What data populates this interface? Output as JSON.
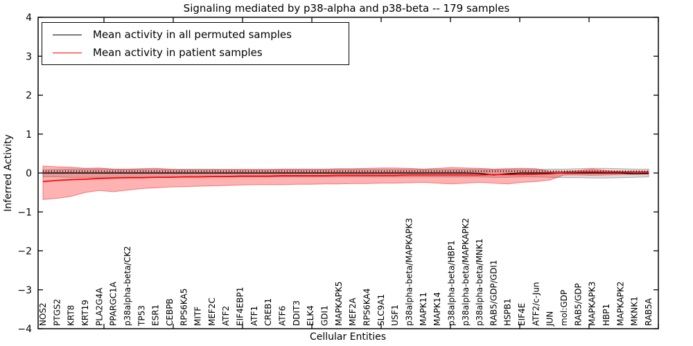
{
  "chart_data": {
    "type": "line",
    "title": "Signaling mediated by p38-alpha and p38-beta -- 179 samples",
    "xlabel": "Cellular Entities",
    "ylabel": "Inferred Activity",
    "ylim": [
      -4,
      4
    ],
    "yticks": [
      4,
      3,
      2,
      1,
      0,
      -1,
      -2,
      -3,
      -4
    ],
    "grid": false,
    "legend_position": "upper left",
    "zero_line": {
      "style": "dotted",
      "color": "#000000",
      "y": 0
    },
    "categories": [
      "NOS2",
      "PTGS2",
      "KRT8",
      "KRT19",
      "PLA2G4A",
      "PPARGC1A",
      "p38alpha-beta/CK2",
      "TP53",
      "ESR1",
      "CEBPB",
      "RPS6KA5",
      "MITF",
      "MEF2C",
      "ATF2",
      "EIF4EBP1",
      "ATF1",
      "CREB1",
      "ATF6",
      "DDIT3",
      "ELK4",
      "GDI1",
      "MAPKAPK5",
      "MEF2A",
      "RPS6KA4",
      "SLC9A1",
      "USF1",
      "p38alpha-beta/MAPKAPK3",
      "MAPK11",
      "MAPK14",
      "p38alpha-beta/HBP1",
      "p38alpha-beta/MAPKAPK2",
      "p38alpha-beta/MNK1",
      "RAB5/GDP/GDI1",
      "HSPB1",
      "EIF4E",
      "ATF2/c-Jun",
      "JUN",
      "mol:GDP",
      "RAB5/GDP",
      "MAPKAPK3",
      "HBP1",
      "MAPKAPK2",
      "MKNK1",
      "RAB5A"
    ],
    "series": [
      {
        "name": "Mean activity in all permuted samples",
        "color": "#000000",
        "values": [
          0,
          0,
          0,
          0,
          0,
          0,
          0,
          0,
          0,
          0,
          0,
          0,
          0,
          0,
          0,
          0,
          0,
          0,
          0,
          0,
          0,
          0,
          0,
          0,
          0,
          0,
          0,
          0,
          0,
          0,
          0,
          -0.01,
          -0.05,
          -0.02,
          0,
          0,
          0,
          0,
          0,
          0,
          0,
          0,
          -0.02,
          -0.01
        ],
        "band": {
          "upper": [
            0.08,
            0.09,
            0.1,
            0.1,
            0.1,
            0.1,
            0.09,
            0.09,
            0.09,
            0.09,
            0.1,
            0.1,
            0.1,
            0.09,
            0.09,
            0.09,
            0.09,
            0.09,
            0.09,
            0.09,
            0.09,
            0.09,
            0.09,
            0.09,
            0.09,
            0.09,
            0.09,
            0.09,
            0.09,
            0.09,
            0.09,
            0.09,
            0.09,
            0.09,
            0.09,
            0.09,
            0.1,
            0.1,
            0.11,
            0.12,
            0.12,
            0.11,
            0.1,
            0.1
          ],
          "lower": [
            -0.1,
            -0.1,
            -0.11,
            -0.11,
            -0.11,
            -0.11,
            -0.1,
            -0.1,
            -0.1,
            -0.1,
            -0.1,
            -0.1,
            -0.1,
            -0.1,
            -0.1,
            -0.1,
            -0.1,
            -0.1,
            -0.1,
            -0.1,
            -0.1,
            -0.1,
            -0.1,
            -0.1,
            -0.1,
            -0.1,
            -0.1,
            -0.1,
            -0.1,
            -0.1,
            -0.1,
            -0.1,
            -0.11,
            -0.11,
            -0.1,
            -0.1,
            -0.11,
            -0.12,
            -0.12,
            -0.13,
            -0.13,
            -0.12,
            -0.11,
            -0.1
          ],
          "fill": "rgba(0,0,0,0.14)",
          "edge": "rgba(110,110,110,0.5)"
        }
      },
      {
        "name": "Mean activity in patient samples",
        "color": "#ff0000",
        "values": [
          -0.22,
          -0.19,
          -0.17,
          -0.16,
          -0.14,
          -0.13,
          -0.12,
          -0.12,
          -0.11,
          -0.11,
          -0.1,
          -0.1,
          -0.09,
          -0.09,
          -0.08,
          -0.08,
          -0.08,
          -0.07,
          -0.07,
          -0.07,
          -0.07,
          -0.06,
          -0.06,
          -0.06,
          -0.06,
          -0.06,
          -0.05,
          -0.05,
          -0.05,
          -0.05,
          -0.05,
          -0.05,
          -0.04,
          -0.04,
          -0.04,
          -0.03,
          -0.02,
          0.01,
          0.02,
          0.03,
          0.02,
          0.02,
          0.02,
          0.02
        ],
        "band": {
          "upper": [
            0.18,
            0.16,
            0.15,
            0.12,
            0.13,
            0.1,
            0.1,
            0.11,
            0.12,
            0.1,
            0.08,
            0.08,
            0.08,
            0.09,
            0.09,
            0.09,
            0.09,
            0.1,
            0.1,
            0.1,
            0.1,
            0.11,
            0.11,
            0.12,
            0.13,
            0.13,
            0.12,
            0.1,
            0.12,
            0.14,
            0.13,
            0.12,
            0.1,
            0.11,
            0.12,
            0.11,
            0.04,
            0.04,
            0.06,
            0.1,
            0.06,
            0.04,
            0.04,
            0.04
          ],
          "lower": [
            -0.68,
            -0.65,
            -0.6,
            -0.5,
            -0.45,
            -0.48,
            -0.44,
            -0.4,
            -0.38,
            -0.36,
            -0.35,
            -0.34,
            -0.33,
            -0.32,
            -0.31,
            -0.3,
            -0.3,
            -0.3,
            -0.29,
            -0.29,
            -0.28,
            -0.28,
            -0.27,
            -0.27,
            -0.26,
            -0.26,
            -0.25,
            -0.24,
            -0.26,
            -0.28,
            -0.26,
            -0.24,
            -0.26,
            -0.28,
            -0.24,
            -0.22,
            -0.18,
            -0.05,
            -0.05,
            -0.06,
            -0.05,
            -0.04,
            -0.03,
            -0.03
          ],
          "fill": "rgba(255,0,0,0.30)",
          "edge": "rgba(225,45,45,0.55)"
        }
      }
    ]
  }
}
